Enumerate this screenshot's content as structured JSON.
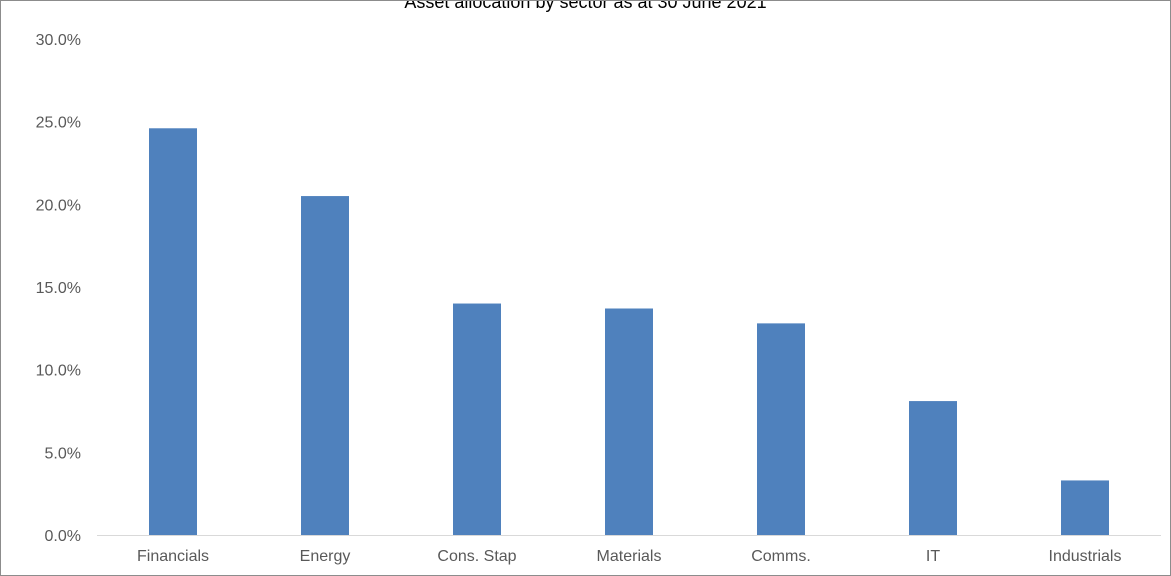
{
  "chart_data": {
    "type": "bar",
    "title": "Asset allocation by sector as at 30 June 2021",
    "xlabel": "",
    "ylabel": "",
    "categories": [
      "Financials",
      "Energy",
      "Cons. Stap",
      "Materials",
      "Comms.",
      "IT",
      "Industrials"
    ],
    "values": [
      24.6,
      20.5,
      14.0,
      13.7,
      12.8,
      8.1,
      3.3
    ],
    "ylim": [
      0,
      30
    ],
    "yticks": [
      "0.0%",
      "5.0%",
      "10.0%",
      "15.0%",
      "20.0%",
      "25.0%",
      "30.0%"
    ],
    "grid": false,
    "legend": "none",
    "colors": {
      "bar": "#4f81bd",
      "axis": "#d9d9d9",
      "tick_text": "#595959",
      "border": "#8c8c8c"
    }
  }
}
